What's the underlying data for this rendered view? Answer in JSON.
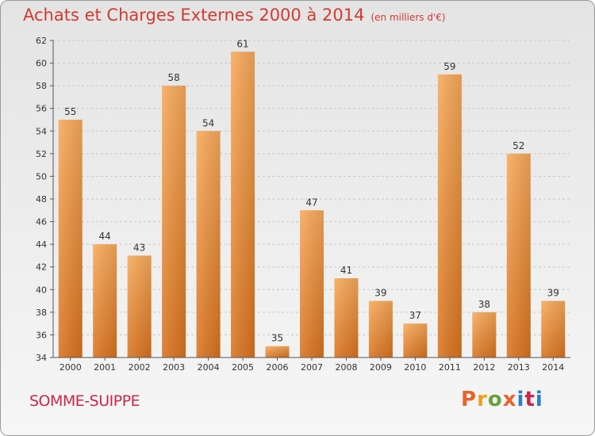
{
  "header": {
    "title": "Achats et Charges Externes 2000 à 2014",
    "unit": "(en milliers d'€)"
  },
  "footer": {
    "commune": "SOMME-SUIPPE",
    "logo_text": "Proxiti"
  },
  "colors": {
    "title": "#d43a2e",
    "commune": "#c8284a",
    "bar_light": "#f7a95a",
    "bar_dark": "#d9731f",
    "logo_letters": [
      "#e8632a",
      "#f0a020",
      "#6aa03a",
      "#e8632a",
      "#2a7fc8",
      "#c8284a",
      "#2a7fc8"
    ]
  },
  "chart_data": {
    "type": "bar",
    "categories": [
      "2000",
      "2001",
      "2002",
      "2003",
      "2004",
      "2005",
      "2006",
      "2007",
      "2008",
      "2009",
      "2010",
      "2011",
      "2012",
      "2013",
      "2014"
    ],
    "values": [
      55,
      44,
      43,
      58,
      54,
      61,
      35,
      47,
      41,
      39,
      37,
      59,
      38,
      52,
      39
    ],
    "title": "Achats et Charges Externes 2000 à 2014",
    "xlabel": "",
    "ylabel": "",
    "ylim": [
      34,
      62
    ],
    "yticks": [
      34,
      36,
      38,
      40,
      42,
      44,
      46,
      48,
      50,
      52,
      54,
      56,
      58,
      60,
      62
    ],
    "grid": true,
    "legend": "none"
  }
}
